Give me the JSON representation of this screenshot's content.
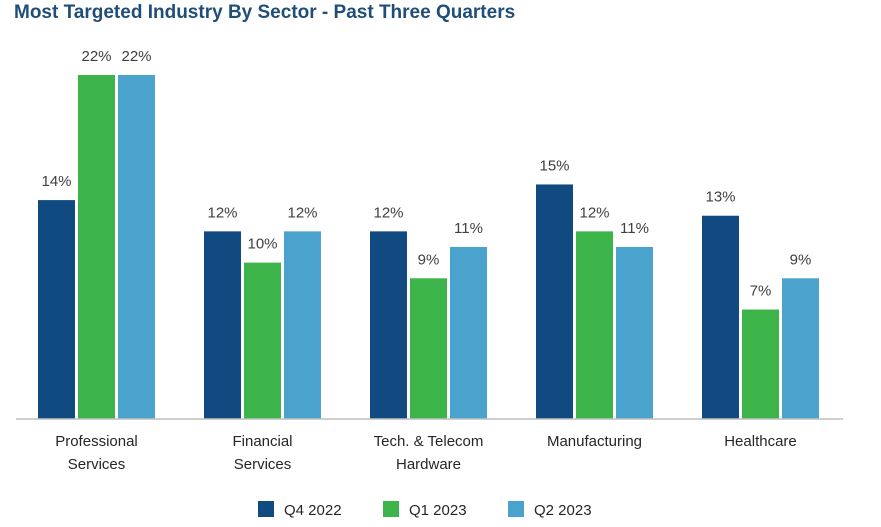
{
  "chart_data": {
    "type": "bar",
    "title": "Most Targeted Industry By Sector - Past Three Quarters",
    "categories": [
      [
        "Professional",
        "Services"
      ],
      [
        "Financial",
        "Services"
      ],
      [
        "Tech. & Telecom",
        "Hardware"
      ],
      [
        "Manufacturing"
      ],
      [
        "Healthcare"
      ]
    ],
    "series": [
      {
        "name": "Q4 2022",
        "color": "#114a80",
        "values": [
          14,
          12,
          12,
          15,
          13
        ]
      },
      {
        "name": "Q1 2023",
        "color": "#3cb449",
        "values": [
          22,
          10,
          9,
          12,
          7
        ]
      },
      {
        "name": "Q2 2023",
        "color": "#4aa3cc",
        "values": [
          22,
          12,
          11,
          11,
          9
        ]
      }
    ],
    "value_suffix": "%",
    "ylim": [
      0,
      22
    ],
    "grid": false,
    "legend_position": "bottom"
  }
}
